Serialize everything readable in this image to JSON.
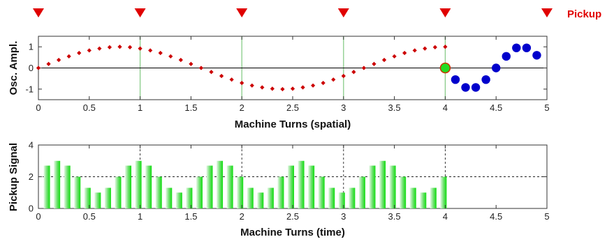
{
  "pickup_label": "Pickup",
  "colors": {
    "marker_red": "#e00000",
    "dot_red": "#cc0000",
    "blue": "#0000cc",
    "green": "#22dd22",
    "grid_green": "#88cc88",
    "axis": "#333333"
  },
  "chart_data": [
    {
      "type": "scatter",
      "title": "",
      "xlabel": "Machine Turns (spatial)",
      "ylabel": "Osc. Ampl.",
      "xlim": [
        0,
        5
      ],
      "ylim": [
        -1.5,
        1.5
      ],
      "xticks": [
        "0",
        "0.5",
        "1",
        "1.5",
        "2",
        "2.5",
        "3",
        "3.5",
        "4",
        "4.5",
        "5"
      ],
      "yticks": [
        "-1",
        "0",
        "1"
      ],
      "pickup_markers_x": [
        0,
        1,
        2,
        3,
        4,
        5
      ],
      "series": [
        {
          "name": "",
          "style": "red-dots",
          "x": [
            0.0,
            0.1,
            0.2,
            0.3,
            0.4,
            0.5,
            0.6,
            0.7,
            0.8,
            0.9,
            1.0,
            1.1,
            1.2,
            1.3,
            1.4,
            1.5,
            1.6,
            1.7,
            1.8,
            1.9,
            2.0,
            2.1,
            2.2,
            2.3,
            2.4,
            2.5,
            2.6,
            2.7,
            2.8,
            2.9,
            3.0,
            3.1,
            3.2,
            3.3,
            3.4,
            3.5,
            3.6,
            3.7,
            3.8,
            3.9,
            4.0
          ],
          "y": [
            0.0,
            0.19,
            0.38,
            0.55,
            0.71,
            0.83,
            0.92,
            0.98,
            1.0,
            0.98,
            0.92,
            0.83,
            0.71,
            0.55,
            0.38,
            0.19,
            0.0,
            -0.19,
            -0.38,
            -0.55,
            -0.71,
            -0.83,
            -0.92,
            -0.98,
            -1.0,
            -0.98,
            -0.92,
            -0.83,
            -0.71,
            -0.55,
            -0.38,
            -0.19,
            0.0,
            0.19,
            0.38,
            0.55,
            0.71,
            0.83,
            0.92,
            0.98,
            1.0
          ]
        },
        {
          "name": "",
          "style": "blue-dots",
          "x": [
            4.1,
            4.2,
            4.3,
            4.4,
            4.5,
            4.6,
            4.7,
            4.8,
            4.9
          ],
          "y": [
            -0.55,
            -0.92,
            -0.92,
            -0.55,
            0.0,
            0.55,
            0.95,
            0.95,
            0.6
          ]
        },
        {
          "name": "",
          "style": "green-dot",
          "x": [
            4.0
          ],
          "y": [
            0.0
          ]
        }
      ],
      "vertical_lines_x": [
        1,
        2,
        3,
        4
      ],
      "grid": false
    },
    {
      "type": "bar",
      "title": "",
      "xlabel": "Machine Turns (time)",
      "ylabel": "Pickup Signal",
      "xlim": [
        0,
        5
      ],
      "ylim": [
        0,
        4
      ],
      "xticks": [
        "0",
        "0.5",
        "1",
        "1.5",
        "2",
        "2.5",
        "3",
        "3.5",
        "4",
        "4.5",
        "5"
      ],
      "yticks": [
        "0",
        "2",
        "4"
      ],
      "grid": true,
      "x": [
        0.1,
        0.2,
        0.3,
        0.4,
        0.5,
        0.6,
        0.7,
        0.8,
        0.9,
        1.0,
        1.1,
        1.2,
        1.3,
        1.4,
        1.5,
        1.6,
        1.7,
        1.8,
        1.9,
        2.0,
        2.1,
        2.2,
        2.3,
        2.4,
        2.5,
        2.6,
        2.7,
        2.8,
        2.9,
        3.0,
        3.1,
        3.2,
        3.3,
        3.4,
        3.5,
        3.6,
        3.7,
        3.8,
        3.9,
        4.0
      ],
      "values": [
        2.7,
        3.0,
        2.7,
        2.0,
        1.3,
        1.0,
        1.3,
        2.0,
        2.7,
        3.0,
        2.7,
        2.0,
        1.3,
        1.0,
        1.3,
        2.0,
        2.7,
        3.0,
        2.7,
        2.0,
        1.3,
        1.0,
        1.3,
        2.0,
        2.7,
        3.0,
        2.7,
        2.0,
        1.3,
        1.0,
        1.3,
        2.0,
        2.7,
        3.0,
        2.7,
        2.0,
        1.3,
        1.0,
        1.3,
        2.0
      ]
    }
  ]
}
